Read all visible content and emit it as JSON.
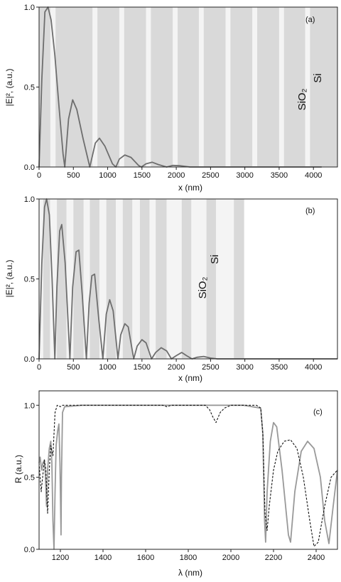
{
  "chart_data": [
    {
      "type": "line",
      "panel": "(a)",
      "xlabel": "x (nm)",
      "ylabel": "|E|², (a.u.)",
      "xlim": [
        0,
        4350
      ],
      "ylim": [
        0,
        1.0
      ],
      "xticks": [
        "0",
        "500",
        "1000",
        "1500",
        "2000",
        "2500",
        "3000",
        "3500",
        "4000"
      ],
      "yticks": [
        "0.0",
        "0.5",
        "1.0"
      ],
      "layer_labels": [
        "SiO₂",
        "Si"
      ],
      "layer_colors": {
        "sio2": "#f4f4f4",
        "si": "#d9d9d9"
      },
      "layers": [
        {
          "material": "si",
          "from": 0,
          "to": 165
        },
        {
          "material": "sio2",
          "from": 165,
          "to": 240
        },
        {
          "material": "si",
          "from": 240,
          "to": 780
        },
        {
          "material": "sio2",
          "from": 780,
          "to": 850
        },
        {
          "material": "si",
          "from": 850,
          "to": 1170
        },
        {
          "material": "sio2",
          "from": 1170,
          "to": 1240
        },
        {
          "material": "si",
          "from": 1240,
          "to": 1560
        },
        {
          "material": "sio2",
          "from": 1560,
          "to": 1630
        },
        {
          "material": "si",
          "from": 1630,
          "to": 1950
        },
        {
          "material": "sio2",
          "from": 1950,
          "to": 2020
        },
        {
          "material": "si",
          "from": 2020,
          "to": 2330
        },
        {
          "material": "sio2",
          "from": 2330,
          "to": 2400
        },
        {
          "material": "si",
          "from": 2400,
          "to": 2720
        },
        {
          "material": "sio2",
          "from": 2720,
          "to": 2790
        },
        {
          "material": "si",
          "from": 2790,
          "to": 3110
        },
        {
          "material": "sio2",
          "from": 3110,
          "to": 3180
        },
        {
          "material": "si",
          "from": 3180,
          "to": 3500
        },
        {
          "material": "sio2",
          "from": 3500,
          "to": 3570
        },
        {
          "material": "si",
          "from": 3570,
          "to": 3880
        },
        {
          "material": "sio2",
          "from": 3880,
          "to": 3950
        },
        {
          "material": "si",
          "from": 3950,
          "to": 4350
        }
      ],
      "series": [
        {
          "color": "#6e6e6e",
          "dash": "",
          "points": [
            [
              0,
              0
            ],
            [
              40,
              0.55
            ],
            [
              85,
              0.97
            ],
            [
              130,
              1.0
            ],
            [
              175,
              0.92
            ],
            [
              230,
              0.7
            ],
            [
              290,
              0.38
            ],
            [
              350,
              0.08
            ],
            [
              375,
              0
            ],
            [
              430,
              0.3
            ],
            [
              490,
              0.42
            ],
            [
              550,
              0.36
            ],
            [
              640,
              0.18
            ],
            [
              740,
              0
            ],
            [
              820,
              0.15
            ],
            [
              880,
              0.18
            ],
            [
              960,
              0.13
            ],
            [
              1070,
              0.02
            ],
            [
              1120,
              0
            ],
            [
              1170,
              0.05
            ],
            [
              1250,
              0.075
            ],
            [
              1340,
              0.06
            ],
            [
              1450,
              0.01
            ],
            [
              1490,
              0
            ],
            [
              1560,
              0.02
            ],
            [
              1650,
              0.03
            ],
            [
              1740,
              0.015
            ],
            [
              1860,
              0
            ],
            [
              1950,
              0.01
            ],
            [
              2050,
              0.008
            ],
            [
              2200,
              0
            ],
            [
              2500,
              0
            ],
            [
              3000,
              0
            ],
            [
              3500,
              0
            ],
            [
              4120,
              0
            ]
          ]
        }
      ]
    },
    {
      "type": "line",
      "panel": "(b)",
      "xlabel": "x (nm)",
      "ylabel": "|E|², (a.u.)",
      "xlim": [
        0,
        4350
      ],
      "ylim": [
        0,
        1.0
      ],
      "xticks": [
        "0",
        "500",
        "1000",
        "1500",
        "2000",
        "2500",
        "3000",
        "3500",
        "4000"
      ],
      "yticks": [
        "0.0",
        "0.5",
        "1.0"
      ],
      "layer_labels": [
        "SiO₂",
        "Si"
      ],
      "layer_colors": {
        "sio2": "#f4f4f4",
        "si": "#d9d9d9"
      },
      "layers": [
        {
          "material": "sio2",
          "from": 0,
          "to": 60
        },
        {
          "material": "si",
          "from": 60,
          "to": 160
        },
        {
          "material": "sio2",
          "from": 160,
          "to": 260
        },
        {
          "material": "si",
          "from": 260,
          "to": 400
        },
        {
          "material": "sio2",
          "from": 400,
          "to": 500
        },
        {
          "material": "si",
          "from": 500,
          "to": 650
        },
        {
          "material": "sio2",
          "from": 650,
          "to": 740
        },
        {
          "material": "si",
          "from": 740,
          "to": 880
        },
        {
          "material": "sio2",
          "from": 880,
          "to": 980
        },
        {
          "material": "si",
          "from": 980,
          "to": 1120
        },
        {
          "material": "sio2",
          "from": 1120,
          "to": 1220
        },
        {
          "material": "si",
          "from": 1220,
          "to": 1360
        },
        {
          "material": "sio2",
          "from": 1360,
          "to": 1470
        },
        {
          "material": "si",
          "from": 1470,
          "to": 1610
        },
        {
          "material": "sio2",
          "from": 1610,
          "to": 1700
        },
        {
          "material": "si",
          "from": 1700,
          "to": 1860
        },
        {
          "material": "sio2",
          "from": 1860,
          "to": 2080
        },
        {
          "material": "si",
          "from": 2080,
          "to": 2220
        },
        {
          "material": "sio2",
          "from": 2220,
          "to": 2440
        },
        {
          "material": "si",
          "from": 2440,
          "to": 2580
        },
        {
          "material": "sio2",
          "from": 2580,
          "to": 2840
        },
        {
          "material": "si",
          "from": 2840,
          "to": 2990
        }
      ],
      "series": [
        {
          "color": "#6e6e6e",
          "dash": "",
          "points": [
            [
              0,
              0
            ],
            [
              40,
              0.6
            ],
            [
              80,
              0.95
            ],
            [
              110,
              1.0
            ],
            [
              150,
              0.9
            ],
            [
              190,
              0.5
            ],
            [
              230,
              0
            ],
            [
              260,
              0.45
            ],
            [
              300,
              0.8
            ],
            [
              330,
              0.84
            ],
            [
              380,
              0.6
            ],
            [
              450,
              0
            ],
            [
              490,
              0.45
            ],
            [
              540,
              0.67
            ],
            [
              580,
              0.68
            ],
            [
              630,
              0.4
            ],
            [
              690,
              0
            ],
            [
              730,
              0.35
            ],
            [
              770,
              0.52
            ],
            [
              810,
              0.53
            ],
            [
              870,
              0.25
            ],
            [
              930,
              0
            ],
            [
              980,
              0.28
            ],
            [
              1030,
              0.37
            ],
            [
              1080,
              0.3
            ],
            [
              1150,
              0
            ],
            [
              1190,
              0.15
            ],
            [
              1250,
              0.22
            ],
            [
              1300,
              0.2
            ],
            [
              1380,
              0
            ],
            [
              1430,
              0.08
            ],
            [
              1500,
              0.12
            ],
            [
              1560,
              0.1
            ],
            [
              1640,
              0
            ],
            [
              1700,
              0.04
            ],
            [
              1780,
              0.07
            ],
            [
              1860,
              0.05
            ],
            [
              1930,
              0
            ],
            [
              2000,
              0.02
            ],
            [
              2080,
              0.04
            ],
            [
              2150,
              0.02
            ],
            [
              2230,
              0
            ],
            [
              2300,
              0.01
            ],
            [
              2400,
              0.015
            ],
            [
              2500,
              0.005
            ],
            [
              2600,
              0
            ],
            [
              3000,
              0
            ],
            [
              3500,
              0
            ],
            [
              4350,
              0
            ]
          ]
        }
      ]
    },
    {
      "type": "line",
      "panel": "(c)",
      "xlabel": "λ (nm)",
      "ylabel": "R (a.u.)",
      "xlim": [
        1100,
        2500
      ],
      "ylim": [
        0,
        1.1
      ],
      "xticks": [
        "1200",
        "1400",
        "1600",
        "1800",
        "2000",
        "2200",
        "2400"
      ],
      "yticks": [
        "0.0",
        "0.5",
        "1.0"
      ],
      "series": [
        {
          "color": "#999999",
          "dash": "",
          "points": [
            [
              1100,
              0.6
            ],
            [
              1105,
              0.64
            ],
            [
              1112,
              0.55
            ],
            [
              1118,
              0.6
            ],
            [
              1125,
              0.62
            ],
            [
              1130,
              0.5
            ],
            [
              1135,
              0.3
            ],
            [
              1140,
              0.55
            ],
            [
              1148,
              0.7
            ],
            [
              1155,
              0.75
            ],
            [
              1160,
              0.6
            ],
            [
              1165,
              0.2
            ],
            [
              1170,
              0
            ],
            [
              1175,
              0.4
            ],
            [
              1180,
              0.72
            ],
            [
              1187,
              0.82
            ],
            [
              1193,
              0.87
            ],
            [
              1198,
              0.6
            ],
            [
              1203,
              0.1
            ],
            [
              1205,
              0.5
            ],
            [
              1210,
              0.95
            ],
            [
              1220,
              0.99
            ],
            [
              1300,
              1.0
            ],
            [
              1500,
              1.0
            ],
            [
              1700,
              1.0
            ],
            [
              1900,
              1.0
            ],
            [
              2060,
              1.0
            ],
            [
              2140,
              0.98
            ],
            [
              2150,
              0.8
            ],
            [
              2158,
              0.2
            ],
            [
              2163,
              0.05
            ],
            [
              2170,
              0.4
            ],
            [
              2185,
              0.75
            ],
            [
              2200,
              0.88
            ],
            [
              2215,
              0.85
            ],
            [
              2240,
              0.55
            ],
            [
              2270,
              0.1
            ],
            [
              2280,
              0.05
            ],
            [
              2300,
              0.4
            ],
            [
              2330,
              0.68
            ],
            [
              2360,
              0.75
            ],
            [
              2390,
              0.7
            ],
            [
              2420,
              0.5
            ],
            [
              2440,
              0.2
            ],
            [
              2460,
              0.04
            ],
            [
              2480,
              0.3
            ],
            [
              2500,
              0.55
            ]
          ]
        },
        {
          "color": "#111111",
          "dash": "3,2",
          "points": [
            [
              1100,
              0.6
            ],
            [
              1110,
              0.4
            ],
            [
              1118,
              0.52
            ],
            [
              1125,
              0.62
            ],
            [
              1132,
              0.55
            ],
            [
              1140,
              0.25
            ],
            [
              1148,
              0.55
            ],
            [
              1155,
              0.72
            ],
            [
              1165,
              0.65
            ],
            [
              1175,
              0.95
            ],
            [
              1185,
              1.0
            ],
            [
              1200,
              0.99
            ],
            [
              1210,
              1.0
            ],
            [
              1300,
              1.0
            ],
            [
              1500,
              1.0
            ],
            [
              1680,
              1.0
            ],
            [
              1700,
              0.99
            ],
            [
              1720,
              1.0
            ],
            [
              1880,
              1.0
            ],
            [
              1900,
              0.97
            ],
            [
              1915,
              0.92
            ],
            [
              1930,
              0.88
            ],
            [
              1950,
              0.95
            ],
            [
              1970,
              0.98
            ],
            [
              2000,
              1.0
            ],
            [
              2060,
              1.0
            ],
            [
              2120,
              1.0
            ],
            [
              2140,
              0.98
            ],
            [
              2150,
              0.8
            ],
            [
              2160,
              0.25
            ],
            [
              2170,
              0.13
            ],
            [
              2180,
              0.3
            ],
            [
              2200,
              0.55
            ],
            [
              2220,
              0.68
            ],
            [
              2250,
              0.75
            ],
            [
              2280,
              0.76
            ],
            [
              2310,
              0.7
            ],
            [
              2340,
              0.5
            ],
            [
              2370,
              0.2
            ],
            [
              2390,
              0.02
            ],
            [
              2410,
              0.05
            ],
            [
              2440,
              0.3
            ],
            [
              2470,
              0.5
            ],
            [
              2500,
              0.55
            ]
          ]
        }
      ]
    }
  ]
}
